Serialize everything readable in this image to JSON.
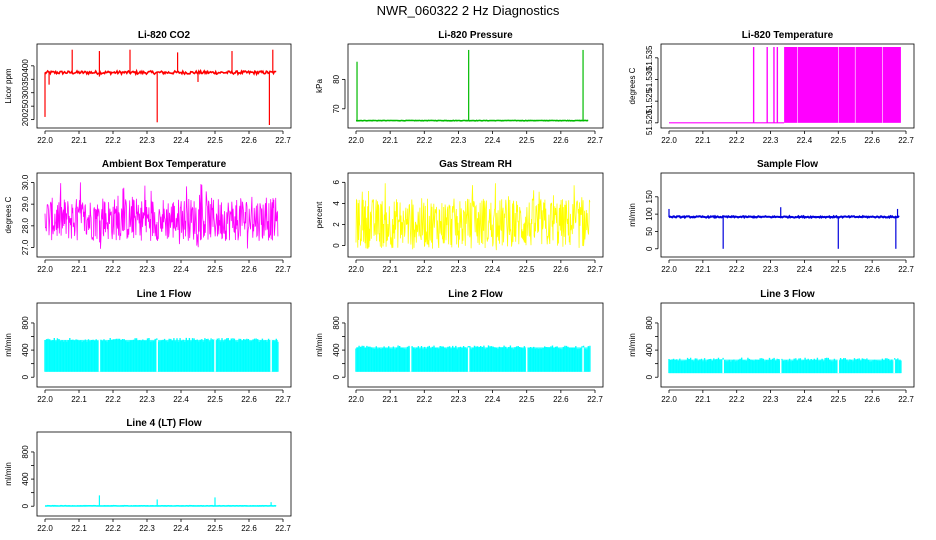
{
  "figure_title": "NWR_060322  2 Hz Diagnostics",
  "colors": {
    "red": "#ff0000",
    "green": "#00bb00",
    "magenta": "#ff00ff",
    "yellow": "#ffff00",
    "blue": "#0000dd",
    "cyan": "#00ffff"
  },
  "chart_data": [
    {
      "type": "line",
      "title": "Li-820 CO2",
      "xlabel": "",
      "ylabel": "Licor ppm",
      "color": "red",
      "xlim": [
        22.0,
        22.7
      ],
      "ylim": [
        180,
        470
      ],
      "xticks": [
        22.0,
        22.1,
        22.2,
        22.3,
        22.4,
        22.5,
        22.6,
        22.7
      ],
      "yticks": [
        200,
        250,
        300,
        350,
        400
      ],
      "baseline": 375,
      "noise": 6,
      "spikes": [
        [
          22.0,
          210
        ],
        [
          22.012,
          330
        ],
        [
          22.08,
          460
        ],
        [
          22.16,
          455
        ],
        [
          22.16,
          360
        ],
        [
          22.25,
          460
        ],
        [
          22.33,
          190
        ],
        [
          22.39,
          450
        ],
        [
          22.45,
          340
        ],
        [
          22.55,
          455
        ],
        [
          22.66,
          180
        ],
        [
          22.67,
          460
        ]
      ]
    },
    {
      "type": "line",
      "title": "Li-820 Pressure",
      "xlabel": "",
      "ylabel": "kPa",
      "color": "green",
      "xlim": [
        22.0,
        22.7
      ],
      "ylim": [
        64.5,
        91
      ],
      "xticks": [
        22.0,
        22.1,
        22.2,
        22.3,
        22.4,
        22.5,
        22.6,
        22.7
      ],
      "yticks": [
        70,
        80
      ],
      "baseline": 66,
      "noise": 0.08,
      "spikes": [
        [
          22.003,
          86
        ],
        [
          22.33,
          90
        ],
        [
          22.665,
          90
        ]
      ]
    },
    {
      "type": "line",
      "title": "Li-820 Temperature",
      "xlabel": "",
      "ylabel": "degrees C",
      "color": "magenta",
      "xlim": [
        22.0,
        22.7
      ],
      "ylim": [
        51.5195,
        51.5375
      ],
      "xticks": [
        22.0,
        22.1,
        22.2,
        22.3,
        22.4,
        22.5,
        22.6,
        22.7
      ],
      "yticks": [
        51.52,
        51.525,
        51.53,
        51.535
      ],
      "ytick_labels": [
        "51.520",
        "51.525",
        "51.530",
        "51.535"
      ],
      "low": 51.52,
      "high": 51.5375,
      "toggle_start": 22.25,
      "dense_start": 22.34
    },
    {
      "type": "line",
      "title": "Ambient Box Temperature",
      "xlabel": "",
      "ylabel": "degrees C",
      "color": "magenta",
      "xlim": [
        22.0,
        22.7
      ],
      "ylim": [
        26.7,
        30.3
      ],
      "xticks": [
        22.0,
        22.1,
        22.2,
        22.3,
        22.4,
        22.5,
        22.6,
        22.7
      ],
      "yticks": [
        27.0,
        28.0,
        29.0,
        30.0
      ],
      "ytick_labels": [
        "27.0",
        "28.0",
        "29.0",
        "30.0"
      ],
      "band_low": 27.3,
      "band_high": 29.3,
      "range_min": 26.9,
      "range_max": 30.1
    },
    {
      "type": "line",
      "title": "Gas Stream RH",
      "xlabel": "",
      "ylabel": "percent",
      "color": "yellow",
      "xlim": [
        22.0,
        22.7
      ],
      "ylim": [
        -0.8,
        6.6
      ],
      "xticks": [
        22.0,
        22.1,
        22.2,
        22.3,
        22.4,
        22.5,
        22.6,
        22.7
      ],
      "yticks": [
        0,
        2,
        4,
        6
      ],
      "band_low": -0.3,
      "band_high": 4.5,
      "range_min": -0.5,
      "range_max": 6.0
    },
    {
      "type": "line",
      "title": "Sample Flow",
      "xlabel": "",
      "ylabel": "ml/min",
      "color": "blue",
      "xlim": [
        22.0,
        22.7
      ],
      "ylim": [
        -15,
        210
      ],
      "xticks": [
        22.0,
        22.1,
        22.2,
        22.3,
        22.4,
        22.5,
        22.6,
        22.7
      ],
      "yticks": [
        0,
        50,
        100,
        150
      ],
      "baseline": 92,
      "noise": 2,
      "spikes": [
        [
          22.0,
          115
        ],
        [
          22.16,
          0
        ],
        [
          22.33,
          120
        ],
        [
          22.5,
          0
        ],
        [
          22.67,
          0
        ],
        [
          22.675,
          115
        ]
      ]
    },
    {
      "type": "line",
      "title": "Line 1 Flow",
      "xlabel": "",
      "ylabel": "ml/min",
      "color": "cyan",
      "xlim": [
        22.0,
        22.7
      ],
      "ylim": [
        -100,
        1050
      ],
      "xticks": [
        22.0,
        22.1,
        22.2,
        22.3,
        22.4,
        22.5,
        22.6,
        22.7
      ],
      "yticks": [
        0,
        400,
        800
      ],
      "y_extra_ticks": [
        200,
        600
      ],
      "low": 80,
      "high": 550,
      "gaps": [
        22.16,
        22.33,
        22.5,
        22.665
      ]
    },
    {
      "type": "line",
      "title": "Line 2 Flow",
      "xlabel": "",
      "ylabel": "ml/min",
      "color": "cyan",
      "xlim": [
        22.0,
        22.7
      ],
      "ylim": [
        -100,
        1050
      ],
      "xticks": [
        22.0,
        22.1,
        22.2,
        22.3,
        22.4,
        22.5,
        22.6,
        22.7
      ],
      "yticks": [
        0,
        400,
        800
      ],
      "y_extra_ticks": [
        200,
        600
      ],
      "low": 80,
      "high": 440,
      "gaps": [
        22.16,
        22.33,
        22.5,
        22.665
      ]
    },
    {
      "type": "line",
      "title": "Line 3 Flow",
      "xlabel": "",
      "ylabel": "ml/min",
      "color": "cyan",
      "xlim": [
        22.0,
        22.7
      ],
      "ylim": [
        -100,
        1050
      ],
      "xticks": [
        22.0,
        22.1,
        22.2,
        22.3,
        22.4,
        22.5,
        22.6,
        22.7
      ],
      "yticks": [
        0,
        400,
        800
      ],
      "y_extra_ticks": [
        200,
        600
      ],
      "low": 60,
      "high": 260,
      "gaps": [
        22.16,
        22.33,
        22.5,
        22.665
      ]
    },
    {
      "type": "line",
      "title": "Line 4 (LT) Flow",
      "xlabel": "",
      "ylabel": "ml/min",
      "color": "cyan",
      "xlim": [
        22.0,
        22.7
      ],
      "ylim": [
        -100,
        1050
      ],
      "xticks": [
        22.0,
        22.1,
        22.2,
        22.3,
        22.4,
        22.5,
        22.6,
        22.7
      ],
      "yticks": [
        0,
        400,
        800
      ],
      "y_extra_ticks": [
        200,
        600
      ],
      "baseline": 5,
      "noise": 2,
      "spikes": [
        [
          22.16,
          160
        ],
        [
          22.33,
          100
        ],
        [
          22.5,
          130
        ],
        [
          22.665,
          60
        ]
      ]
    }
  ]
}
